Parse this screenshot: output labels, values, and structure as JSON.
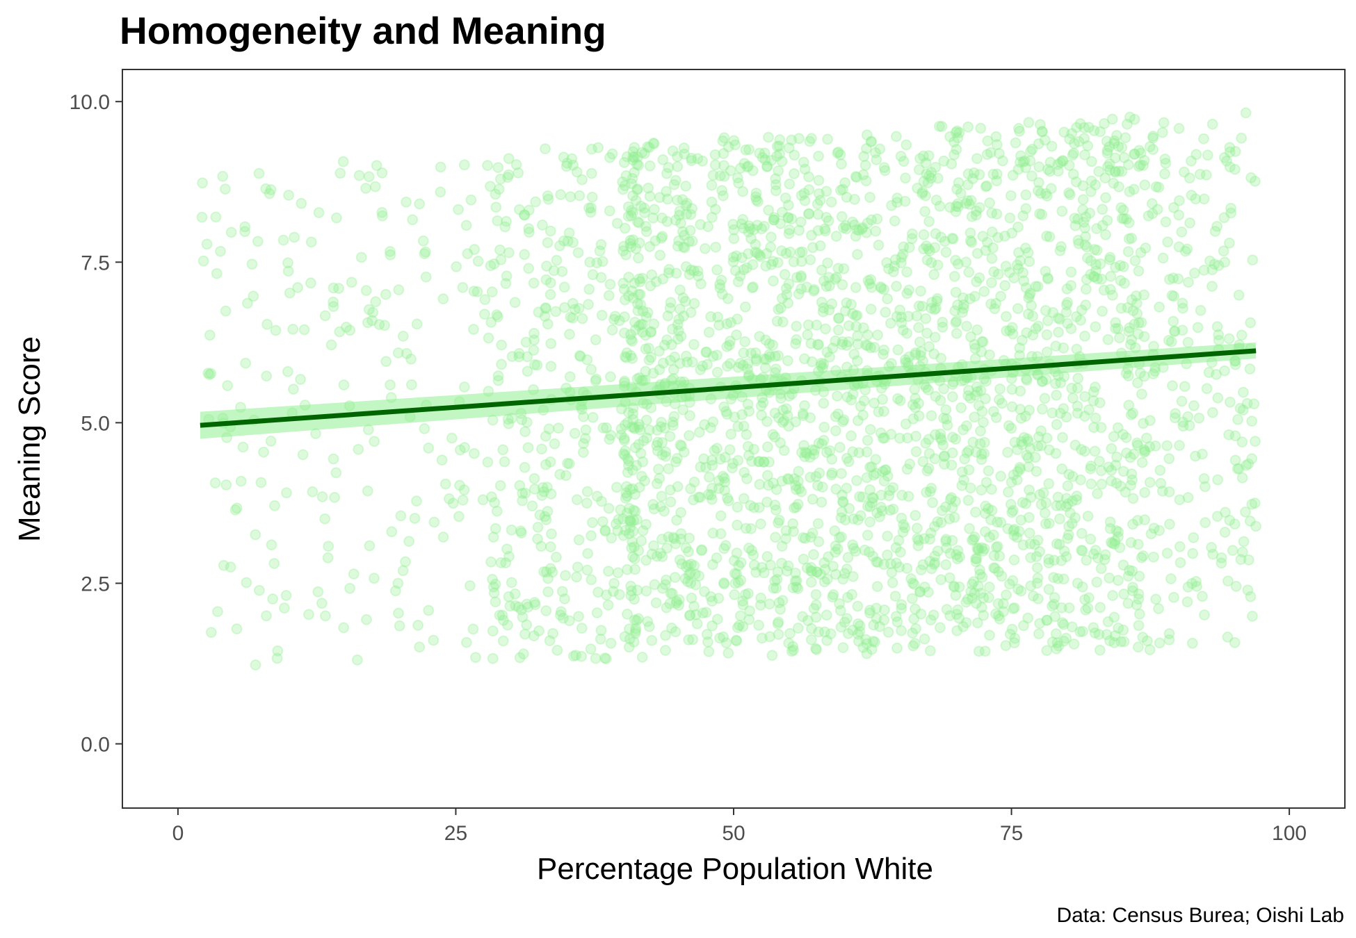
{
  "chart_data": {
    "type": "scatter",
    "title": "Homogeneity and Meaning",
    "xlabel": "Percentage Population White",
    "ylabel": "Meaning Score",
    "caption": "Data: Census Burea; Oishi Lab",
    "xlim": [
      -5,
      105
    ],
    "ylim": [
      -1,
      10.5
    ],
    "x_ticks": [
      0,
      25,
      50,
      75,
      100
    ],
    "x_tick_labels": [
      "0",
      "25",
      "50",
      "75",
      "100"
    ],
    "y_ticks": [
      0,
      2.5,
      5,
      7.5,
      10
    ],
    "y_tick_labels": [
      "0.0",
      "2.5",
      "5.0",
      "7.5",
      "10.0"
    ],
    "grid": false,
    "colors": {
      "points": "#90ee90",
      "trend_line": "#006400",
      "ribbon": "#90ee90",
      "panel_border": "#333333"
    },
    "point_opacity": 0.3,
    "trend": {
      "x": [
        2,
        97
      ],
      "y": [
        4.96,
        6.12
      ],
      "ci_lower": [
        4.75,
        6.0
      ],
      "ci_upper": [
        5.17,
        6.25
      ]
    },
    "sample": {
      "count": 3000,
      "x_range": [
        2,
        97
      ],
      "y_range": [
        1.2,
        9.85
      ],
      "note_density": "higher density between x 40 and 85"
    }
  }
}
